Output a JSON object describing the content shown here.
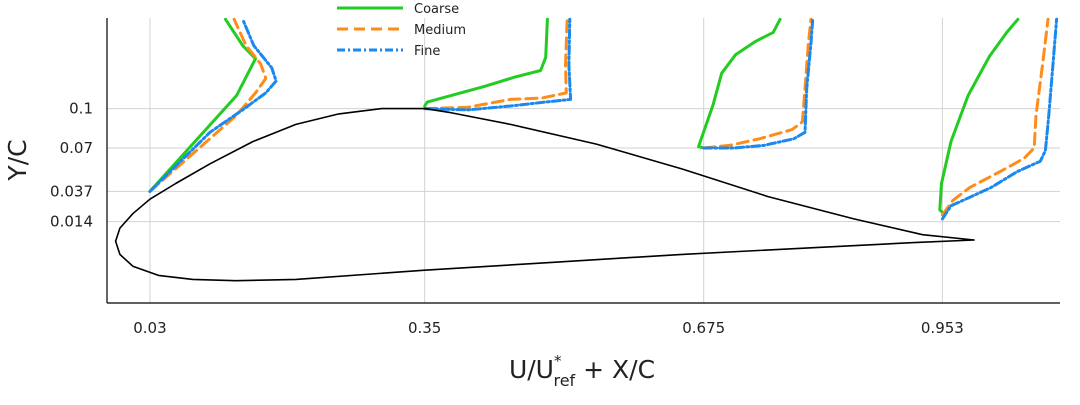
{
  "chart_data": {
    "type": "line",
    "title": "",
    "xlabel": "U/U*ref + X/C",
    "ylabel": "Y/C",
    "xlim": [
      -0.02,
      1.09
    ],
    "ylim": [
      -0.048,
      0.169
    ],
    "x_ticks": [
      0.03,
      0.35,
      0.675,
      0.953
    ],
    "x_tick_labels": [
      "0.03",
      "0.35",
      "0.675",
      "0.953"
    ],
    "y_ticks": [
      0.1,
      0.07,
      0.037,
      0.014
    ],
    "y_tick_labels": [
      "0.1",
      "0.07",
      "0.037",
      "0.014"
    ],
    "grid": true,
    "legend_position": "top-center",
    "series": [
      {
        "name": "Coarse",
        "color": "#22cc22",
        "dash": "solid",
        "segments": [
          [
            [
              0.03,
              0.037
            ],
            [
              0.131,
              0.11
            ],
            [
              0.153,
              0.138
            ],
            [
              0.138,
              0.148
            ],
            [
              0.118,
              0.168
            ]
          ],
          [
            [
              0.35,
              0.102
            ],
            [
              0.353,
              0.105
            ],
            [
              0.42,
              0.117
            ],
            [
              0.455,
              0.124
            ],
            [
              0.485,
              0.129
            ],
            [
              0.491,
              0.139
            ],
            [
              0.493,
              0.168
            ]
          ],
          [
            [
              0.675,
              0.07
            ],
            [
              0.669,
              0.071
            ],
            [
              0.686,
              0.103
            ],
            [
              0.696,
              0.127
            ],
            [
              0.712,
              0.141
            ],
            [
              0.735,
              0.151
            ],
            [
              0.756,
              0.158
            ],
            [
              0.764,
              0.168
            ]
          ],
          [
            [
              0.953,
              0.021
            ],
            [
              0.95,
              0.023
            ],
            [
              0.952,
              0.043
            ],
            [
              0.963,
              0.075
            ],
            [
              0.983,
              0.11
            ],
            [
              1.008,
              0.14
            ],
            [
              1.028,
              0.158
            ],
            [
              1.041,
              0.168
            ]
          ]
        ]
      },
      {
        "name": "Medium",
        "color": "#ff8c1a",
        "dash": "dashed",
        "segments": [
          [
            [
              0.03,
              0.037
            ],
            [
              0.131,
              0.095
            ],
            [
              0.153,
              0.112
            ],
            [
              0.165,
              0.123
            ],
            [
              0.159,
              0.134
            ],
            [
              0.142,
              0.148
            ],
            [
              0.128,
              0.168
            ]
          ],
          [
            [
              0.35,
              0.1
            ],
            [
              0.4,
              0.101
            ],
            [
              0.45,
              0.107
            ],
            [
              0.486,
              0.108
            ],
            [
              0.515,
              0.112
            ],
            [
              0.514,
              0.133
            ],
            [
              0.516,
              0.168
            ]
          ],
          [
            [
              0.675,
              0.07
            ],
            [
              0.705,
              0.072
            ],
            [
              0.74,
              0.077
            ],
            [
              0.778,
              0.084
            ],
            [
              0.79,
              0.09
            ],
            [
              0.793,
              0.115
            ],
            [
              0.797,
              0.15
            ],
            [
              0.8,
              0.168
            ]
          ],
          [
            [
              0.953,
              0.019
            ],
            [
              0.965,
              0.03
            ],
            [
              0.985,
              0.04
            ],
            [
              1.02,
              0.052
            ],
            [
              1.048,
              0.062
            ],
            [
              1.06,
              0.07
            ],
            [
              1.062,
              0.095
            ],
            [
              1.07,
              0.135
            ],
            [
              1.076,
              0.168
            ]
          ]
        ]
      },
      {
        "name": "Fine",
        "color": "#1a88ee",
        "dash": "dashdot",
        "segments": [
          [
            [
              0.03,
              0.037
            ],
            [
              0.1,
              0.082
            ],
            [
              0.14,
              0.1
            ],
            [
              0.165,
              0.112
            ],
            [
              0.177,
              0.121
            ],
            [
              0.172,
              0.131
            ],
            [
              0.151,
              0.148
            ],
            [
              0.138,
              0.168
            ]
          ],
          [
            [
              0.35,
              0.1
            ],
            [
              0.4,
              0.099
            ],
            [
              0.45,
              0.102
            ],
            [
              0.49,
              0.105
            ],
            [
              0.52,
              0.107
            ],
            [
              0.518,
              0.133
            ],
            [
              0.519,
              0.168
            ]
          ],
          [
            [
              0.675,
              0.07
            ],
            [
              0.71,
              0.07
            ],
            [
              0.745,
              0.072
            ],
            [
              0.78,
              0.077
            ],
            [
              0.793,
              0.082
            ],
            [
              0.795,
              0.115
            ],
            [
              0.8,
              0.15
            ],
            [
              0.802,
              0.168
            ]
          ],
          [
            [
              0.953,
              0.016
            ],
            [
              0.963,
              0.026
            ],
            [
              0.98,
              0.031
            ],
            [
              1.01,
              0.04
            ],
            [
              1.04,
              0.052
            ],
            [
              1.067,
              0.06
            ],
            [
              1.073,
              0.068
            ],
            [
              1.077,
              0.095
            ],
            [
              1.082,
              0.135
            ],
            [
              1.086,
              0.168
            ]
          ]
        ]
      },
      {
        "name": "",
        "color": "#000000",
        "dash": "solid",
        "segments": [
          [
            [
              0.99,
              0.0
            ],
            [
              0.93,
              0.004
            ],
            [
              0.85,
              0.016
            ],
            [
              0.75,
              0.033
            ],
            [
              0.65,
              0.054
            ],
            [
              0.55,
              0.073
            ],
            [
              0.45,
              0.088
            ],
            [
              0.38,
              0.097
            ],
            [
              0.35,
              0.1
            ],
            [
              0.3,
              0.1
            ],
            [
              0.25,
              0.096
            ],
            [
              0.2,
              0.088
            ],
            [
              0.15,
              0.075
            ],
            [
              0.1,
              0.058
            ],
            [
              0.06,
              0.043
            ],
            [
              0.03,
              0.031
            ],
            [
              0.01,
              0.02
            ],
            [
              -0.005,
              0.009
            ],
            [
              -0.01,
              -0.001
            ],
            [
              -0.005,
              -0.011
            ],
            [
              0.01,
              -0.02
            ],
            [
              0.04,
              -0.027
            ],
            [
              0.08,
              -0.03
            ],
            [
              0.13,
              -0.031
            ],
            [
              0.2,
              -0.03
            ],
            [
              0.35,
              -0.023
            ],
            [
              0.5,
              -0.017
            ],
            [
              0.65,
              -0.011
            ],
            [
              0.8,
              -0.006
            ],
            [
              0.92,
              -0.002
            ],
            [
              0.99,
              0.0
            ]
          ]
        ]
      }
    ]
  }
}
